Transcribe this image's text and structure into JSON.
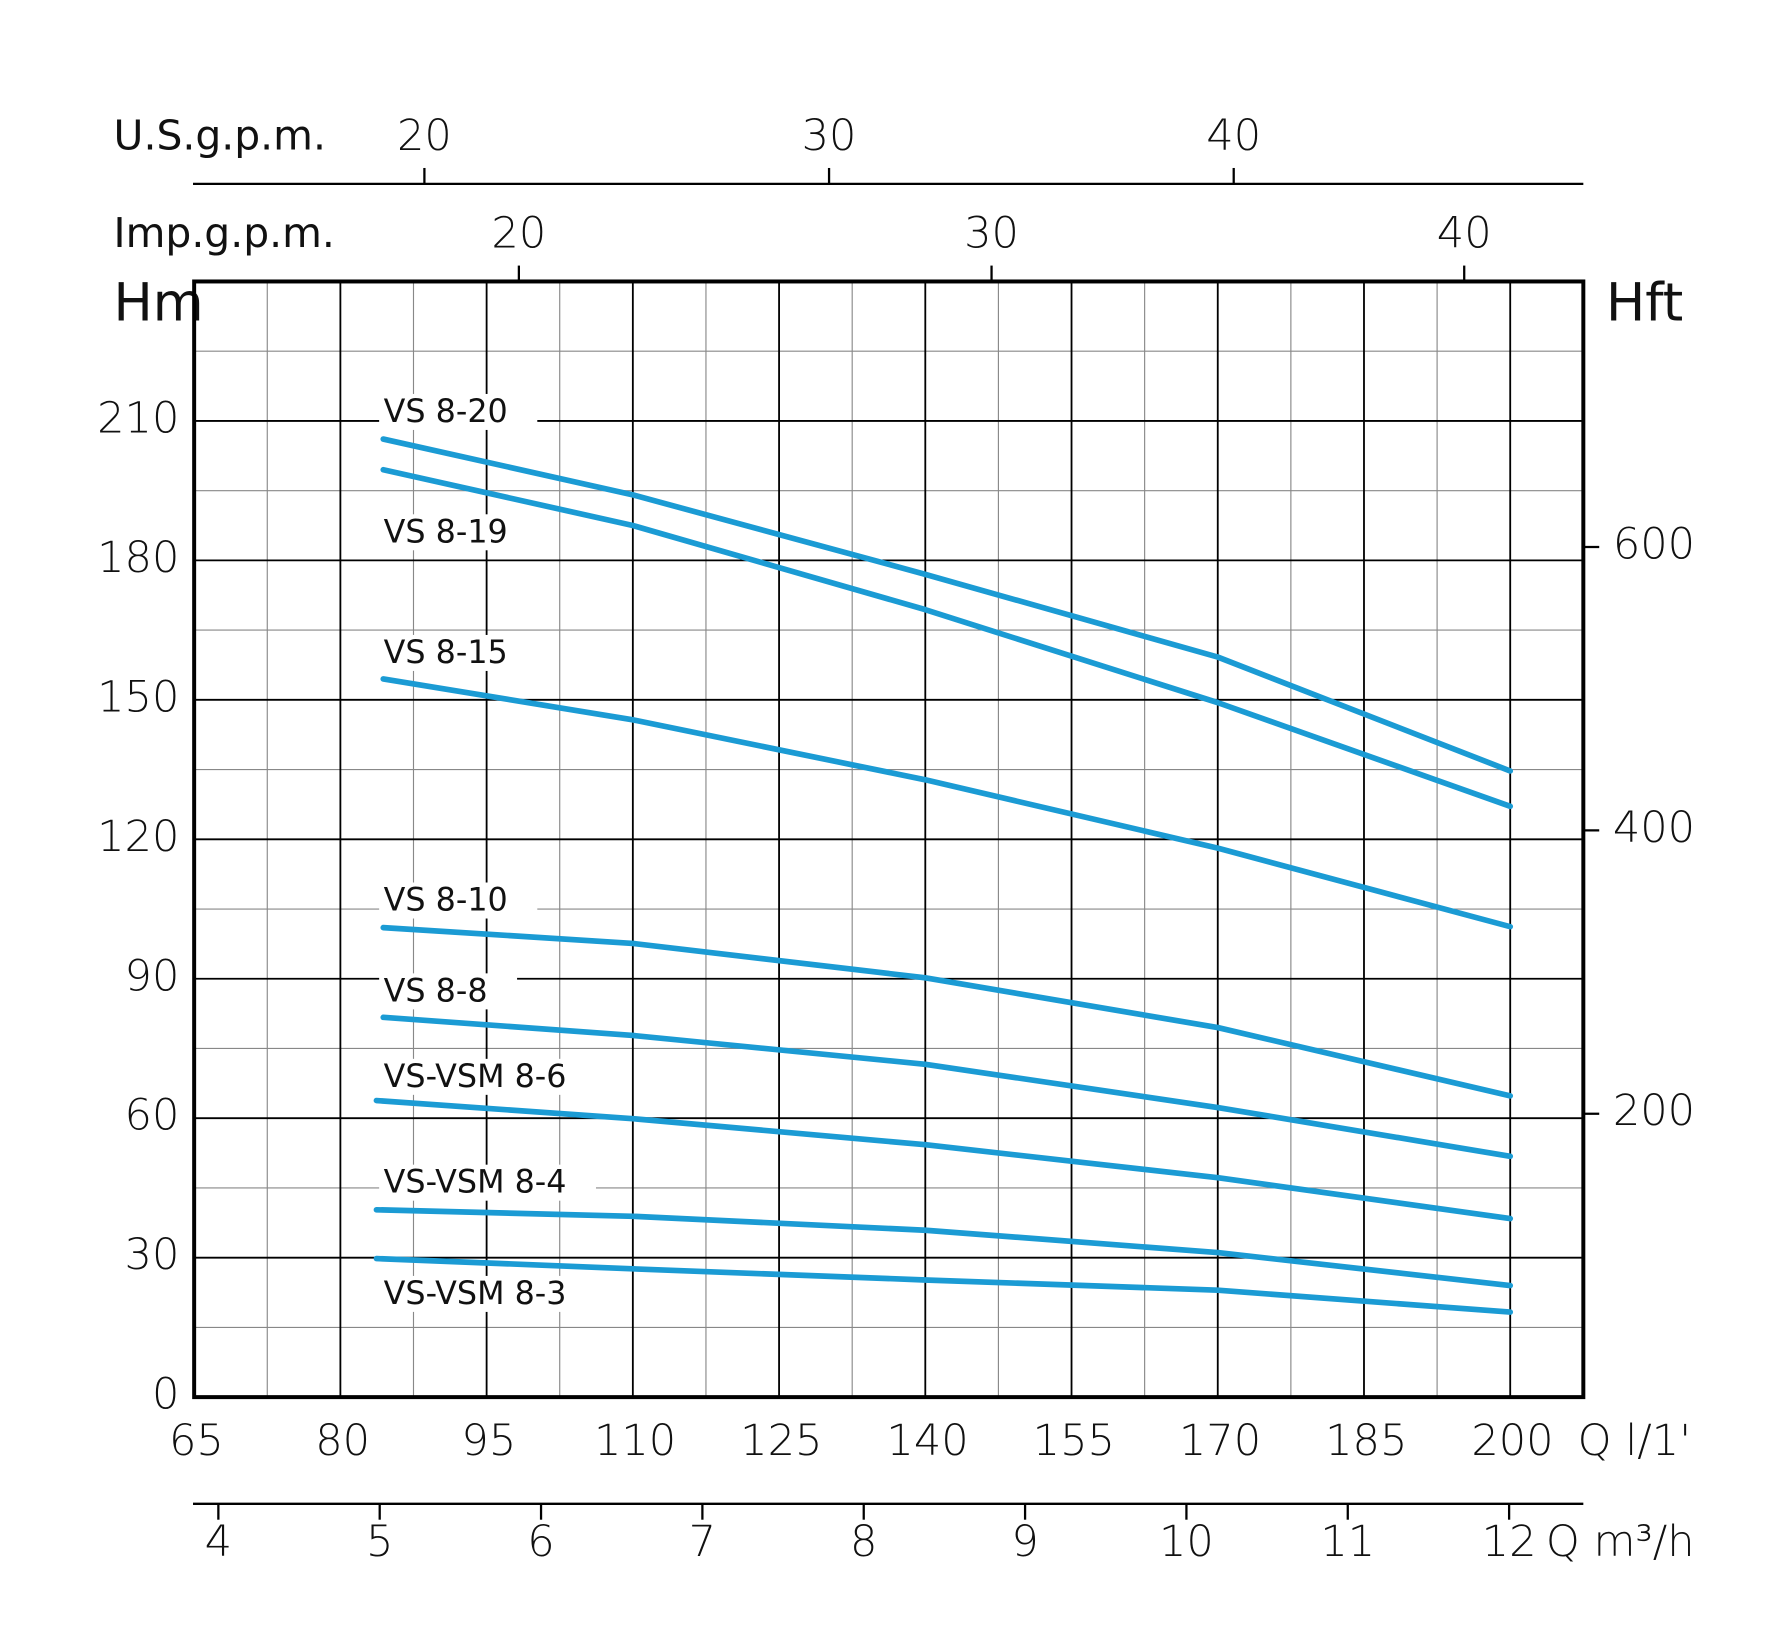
{
  "chart_data": {
    "type": "line",
    "x_label": "Q l/1'",
    "y_label": "Hm",
    "y2_label": "Hft",
    "xlim": [
      65,
      207.5
    ],
    "xticks": [
      65,
      80,
      95,
      110,
      125,
      140,
      155,
      170,
      185,
      200
    ],
    "ylim": [
      0,
      240
    ],
    "yticks": [
      0,
      30,
      60,
      90,
      120,
      150,
      180,
      210
    ],
    "y2lim": [
      0,
      787.4
    ],
    "y2ticks": [
      200,
      400,
      600
    ],
    "grid": true,
    "minor_grid": true,
    "extra_x_axes": [
      {
        "label": "U.S.g.p.m.",
        "position": "top",
        "lim": [
          14.31,
          48.64
        ],
        "ticks": [
          20,
          30,
          40
        ]
      },
      {
        "label": "Imp.g.p.m.",
        "position": "top",
        "lim": [
          13.13,
          42.52
        ],
        "ticks": [
          20,
          30,
          40
        ]
      },
      {
        "label": "Q m³/h",
        "position": "bottom",
        "lim": [
          3.85,
          12.46
        ],
        "ticks": [
          4,
          5,
          6,
          7,
          8,
          9,
          10,
          11,
          12
        ]
      }
    ],
    "series": [
      {
        "name": "VS 8-20",
        "color": "#1b9bd4",
        "x": [
          84.4,
          110,
          140,
          170,
          200
        ],
        "values": [
          206.1,
          194.1,
          177,
          159.2,
          134.7
        ]
      },
      {
        "name": "VS 8-19",
        "color": "#1b9bd4",
        "x": [
          84.4,
          110,
          140,
          170,
          200
        ],
        "values": [
          199.5,
          187.5,
          169.4,
          149.4,
          127.1
        ]
      },
      {
        "name": "VS 8-15",
        "color": "#1b9bd4",
        "x": [
          84.4,
          110,
          140,
          170,
          200
        ],
        "values": [
          154.5,
          145.7,
          132.8,
          118.1,
          101.2
        ]
      },
      {
        "name": "VS 8-10",
        "color": "#1b9bd4",
        "x": [
          84.4,
          110,
          140,
          170,
          200
        ],
        "values": [
          101,
          97.6,
          90.2,
          79.5,
          64.8
        ]
      },
      {
        "name": "VS 8-8",
        "color": "#1b9bd4",
        "x": [
          84.4,
          110,
          140,
          170,
          200
        ],
        "values": [
          81.7,
          77.8,
          71.6,
          62.3,
          51.8
        ]
      },
      {
        "name": "VS-VSM 8-6",
        "color": "#1b9bd4",
        "x": [
          83.7,
          110,
          140,
          170,
          200
        ],
        "values": [
          63.8,
          59.9,
          54.3,
          47.2,
          38.4
        ]
      },
      {
        "name": "VS-VSM 8-4",
        "color": "#1b9bd4",
        "x": [
          83.7,
          110,
          140,
          170,
          200
        ],
        "values": [
          40.3,
          38.9,
          35.9,
          31.1,
          24
        ]
      },
      {
        "name": "VS-VSM 8-3",
        "color": "#1b9bd4",
        "x": [
          83.7,
          110,
          140,
          170,
          200
        ],
        "values": [
          29.8,
          27.6,
          25.2,
          23,
          18.3
        ]
      }
    ]
  }
}
